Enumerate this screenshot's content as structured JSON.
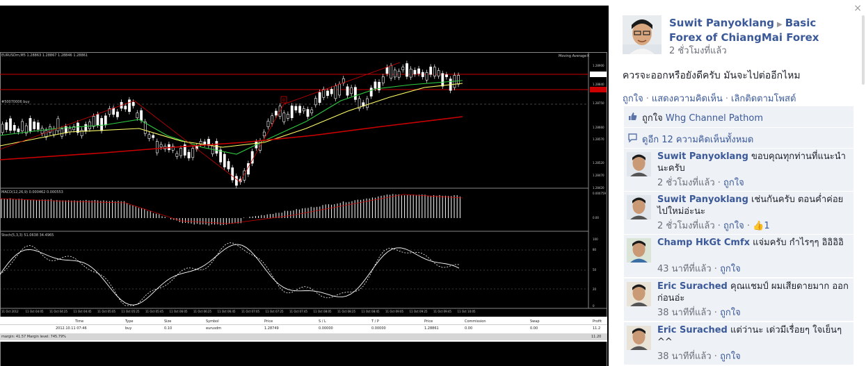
{
  "terminal": {
    "chart_title": "EURUSDm,M5 1.28863 1.28867 1.28846 1.28861",
    "ma_label": "Moving Average",
    "close_label": "×",
    "order_label": "#50070006 buy",
    "order_marker": "0",
    "macd_label": "MACD(12,26,9) 0.000462 0.000553",
    "stoch_label": "Stoch(5,3,3) 51.0638 34.4965",
    "price_ticks": [
      "1.28900",
      "1.28840",
      "1.28750",
      "1.28660",
      "1.28570",
      "1.28520",
      "1.28470",
      "1.28420"
    ],
    "macd_ticks": [
      "0.000759",
      "0.00"
    ],
    "stoch_ticks": [
      "100",
      "80",
      "50",
      "20",
      "0"
    ],
    "time_ticks": [
      "11 Oct 2012",
      "11 Oct 04:05",
      "11 Oct 04:25",
      "11 Oct 04:45",
      "11 Oct 05:05",
      "11 Oct 05:25",
      "11 Oct 05:45",
      "11 Oct 06:05",
      "11 Oct 06:25",
      "11 Oct 06:45",
      "11 Oct 07:05",
      "11 Oct 07:25",
      "11 Oct 07:45",
      "11 Oct 08:05",
      "11 Oct 08:25",
      "11 Oct 08:45",
      "11 Oct 09:05",
      "11 Oct 09:25",
      "11 Oct 09:45",
      "11 Oct 10:05"
    ],
    "colors": {
      "bull": "#ffffff",
      "bear": "#000000",
      "ma_fast": "#2ecc40",
      "ma_slow": "#ffff66",
      "ma_long": "#cc0000",
      "hline": "#cc0000",
      "zigzag": "#cc0000"
    }
  },
  "trade_panel": {
    "headers": [
      "Time",
      "Type",
      "Size",
      "Symbol",
      "Price",
      "S / L",
      "T / P",
      "Price",
      "Commission",
      "Swap",
      "Profit"
    ],
    "row": [
      "2012.10.11 07:46",
      "buy",
      "0.10",
      "eurusdm",
      "1.28749",
      "0.00000",
      "0.00000",
      "1.28861",
      "0.00",
      "0.00",
      "11.2"
    ],
    "footer": "margin: 41.57  Margin level: 745.79%",
    "footer_profit": "11.20"
  },
  "fb": {
    "close": "×",
    "post": {
      "author": "Suwit Panyoklang",
      "group": "Basic Forex of ChiangMai Forex",
      "time": "2 ชั่วโมงที่แล้ว",
      "text": "ควรจะออกหรือยังดีครับ มันจะไปต่ออีกไหม",
      "actions": [
        "ถูกใจ",
        "แสดงความคิดเห็น",
        "เลิกติดตามโพสต์"
      ]
    },
    "likes": {
      "label": "ถูกใจ",
      "who": "Whg Channel Pathom"
    },
    "view_more": "ดูอีก 12 ความคิดเห็นทั้งหมด",
    "comments": [
      {
        "name": "Suwit Panyoklang",
        "text": "ขอบคุณทุกท่านที่แนะนำนะครับ",
        "time": "2 ชั่วโมงที่แล้ว",
        "like": "ถูกใจ",
        "count": ""
      },
      {
        "name": "Suwit Panyoklang",
        "text": "เช่นกันครับ ตอนค่ำค่อยไปใหม่อ่ะนะ",
        "time": "2 ชั่วโมงที่แล้ว",
        "like": "ถูกใจ",
        "count": "1"
      },
      {
        "name": "Champ HkGt Cmfx",
        "text": "แจ่มครับ กำไรๆๆ อิอิอิอิ",
        "time": "43 นาทีที่แล้ว",
        "like": "ถูกใจ",
        "count": ""
      },
      {
        "name": "Eric Surached",
        "text": "คุณแชมป์ ผมเสียดายมาก ออกก่อนอ่ะ",
        "time": "38 นาทีที่แล้ว",
        "like": "ถูกใจ",
        "count": ""
      },
      {
        "name": "Eric Surached",
        "text": "แต่ว่านะ เด่วมีเรื่อยๆ ใจเย็นๆ ^^",
        "time": "38 นาทีที่แล้ว",
        "like": "ถูกใจ",
        "count": ""
      }
    ]
  }
}
